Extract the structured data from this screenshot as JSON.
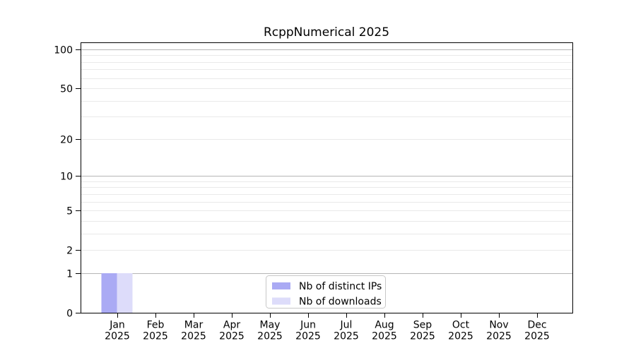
{
  "page": {
    "background": "#ffffff"
  },
  "chart_data": {
    "type": "bar",
    "title": "RcppNumerical 2025",
    "yscale": "log1p",
    "ylim": [
      0,
      113
    ],
    "xlabel": "",
    "ylabel": "",
    "categories": [
      "Jan 2025",
      "Feb 2025",
      "Mar 2025",
      "Apr 2025",
      "May 2025",
      "Jun 2025",
      "Jul 2025",
      "Aug 2025",
      "Sep 2025",
      "Oct 2025",
      "Nov 2025",
      "Dec 2025"
    ],
    "x_labels": [
      {
        "month": "Jan",
        "year": "2025"
      },
      {
        "month": "Feb",
        "year": "2025"
      },
      {
        "month": "Mar",
        "year": "2025"
      },
      {
        "month": "Apr",
        "year": "2025"
      },
      {
        "month": "May",
        "year": "2025"
      },
      {
        "month": "Jun",
        "year": "2025"
      },
      {
        "month": "Jul",
        "year": "2025"
      },
      {
        "month": "Aug",
        "year": "2025"
      },
      {
        "month": "Sep",
        "year": "2025"
      },
      {
        "month": "Oct",
        "year": "2025"
      },
      {
        "month": "Nov",
        "year": "2025"
      },
      {
        "month": "Dec",
        "year": "2025"
      }
    ],
    "yticks": [
      0,
      1,
      2,
      5,
      10,
      20,
      50,
      100
    ],
    "series": [
      {
        "name": "Nb of distinct IPs",
        "color": "#aaaaf4",
        "values": [
          1,
          0,
          0,
          0,
          0,
          0,
          0,
          0,
          0,
          0,
          0,
          0
        ]
      },
      {
        "name": "Nb of downloads",
        "color": "#dddcfa",
        "values": [
          1,
          0,
          0,
          0,
          0,
          0,
          0,
          0,
          0,
          0,
          0,
          0
        ]
      }
    ],
    "grid": {
      "major_values": [
        1,
        10,
        100
      ],
      "minor_values": [
        2,
        3,
        4,
        5,
        6,
        7,
        8,
        9,
        20,
        30,
        40,
        50,
        60,
        70,
        80,
        90
      ],
      "major_color": "#b5b5b5",
      "minor_color": "#e9e9e9"
    },
    "legend": {
      "position": "bottom-center",
      "fill": "#ffffff",
      "border_color": "#c8c8c8"
    },
    "axis_color": "#000000",
    "text_color": "#000000"
  }
}
